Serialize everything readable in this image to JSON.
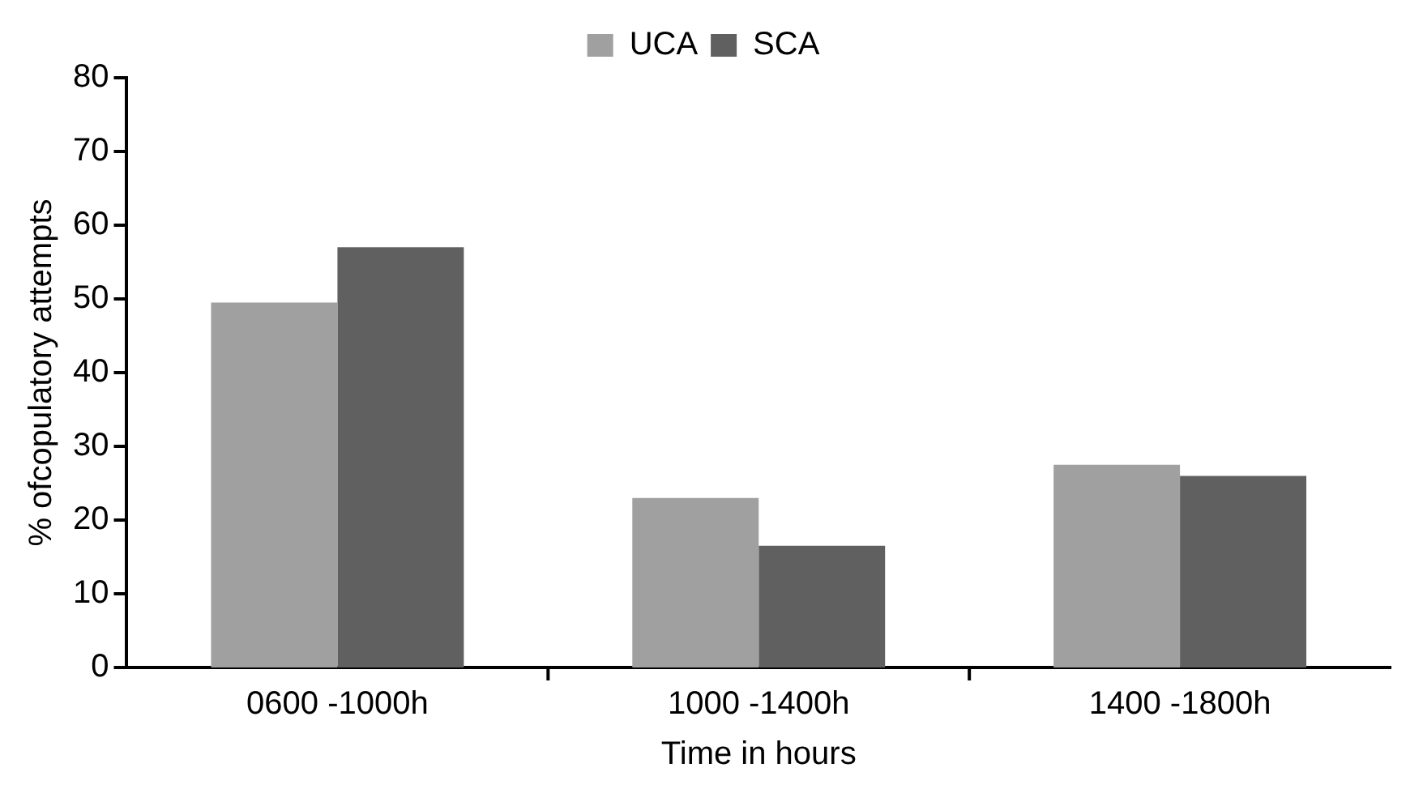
{
  "chart_data": {
    "type": "bar",
    "xlabel": "Time in hours",
    "ylabel": "% ofcopulatory attempts",
    "categories": [
      "0600 -1000h",
      "1000 -1400h",
      "1400 -1800h"
    ],
    "series": [
      {
        "name": "UCA",
        "color": "#a0a0a0",
        "values": [
          49.5,
          23,
          27.5
        ]
      },
      {
        "name": "SCA",
        "color": "#606060",
        "values": [
          57,
          16.5,
          26
        ]
      }
    ],
    "ylim": [
      0,
      80
    ],
    "yticks": [
      0,
      10,
      20,
      30,
      40,
      50,
      60,
      70,
      80
    ],
    "grid": false,
    "legend": "top"
  }
}
